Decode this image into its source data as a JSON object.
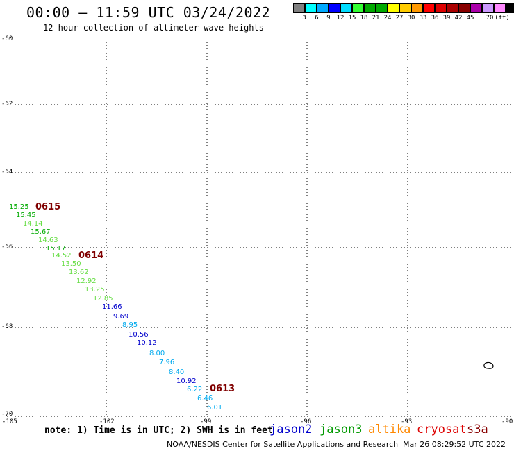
{
  "title": "00:00 – 11:59 UTC 03/24/2022",
  "subtitle": "12 hour collection of altimeter wave heights",
  "colorbar": {
    "colors": [
      "#808080",
      "#00ffff",
      "#00aaff",
      "#0000ff",
      "#00ddff",
      "#33ff33",
      "#00aa00",
      "#00aa00",
      "#ffff00",
      "#ffcc00",
      "#ff9900",
      "#ff0000",
      "#dd0000",
      "#aa0000",
      "#880000",
      "#aa00aa",
      "#cc99ff",
      "#ff88ff",
      "#000000"
    ],
    "labels": [
      "3",
      "6",
      "9",
      "12",
      "15",
      "18",
      "21",
      "24",
      "27",
      "30",
      "33",
      "36",
      "39",
      "42",
      "45",
      "70"
    ],
    "unit": "(ft)"
  },
  "axes": {
    "x_ticks": [
      "-105",
      "-102",
      "-99",
      "-96",
      "-93",
      "-90"
    ],
    "y_ticks": [
      "-60",
      "-62",
      "-64",
      "-66",
      "-68",
      "-70"
    ]
  },
  "observations": [
    {
      "v": "15.25",
      "c": "#00aa00"
    },
    {
      "v": "15.45",
      "c": "#00aa00"
    },
    {
      "v": "14.14",
      "c": "#66dd44"
    },
    {
      "v": "15.67",
      "c": "#00aa00"
    },
    {
      "v": "14.63",
      "c": "#66dd44"
    },
    {
      "v": "15.17",
      "c": "#00aa00"
    },
    {
      "v": "14.52",
      "c": "#66dd44"
    },
    {
      "v": "13.50",
      "c": "#66dd44"
    },
    {
      "v": "13.62",
      "c": "#66dd44"
    },
    {
      "v": "12.92",
      "c": "#66dd44"
    },
    {
      "v": "13.25",
      "c": "#66dd44"
    },
    {
      "v": "12.85",
      "c": "#66dd44"
    },
    {
      "v": "11.66",
      "c": "#0000cc"
    },
    {
      "v": "9.69",
      "c": "#0000cc"
    },
    {
      "v": "8.95",
      "c": "#00aaee"
    },
    {
      "v": "10.56",
      "c": "#0000cc"
    },
    {
      "v": "10.12",
      "c": "#0000cc"
    },
    {
      "v": "8.00",
      "c": "#00aaee"
    },
    {
      "v": "7.96",
      "c": "#00aaee"
    },
    {
      "v": "8.40",
      "c": "#00aaee"
    },
    {
      "v": "10.92",
      "c": "#0000cc"
    },
    {
      "v": "6.22",
      "c": "#00aaee"
    },
    {
      "v": "6.46",
      "c": "#00aaee"
    },
    {
      "v": "6.01",
      "c": "#00aaee"
    }
  ],
  "time_labels": [
    "0615",
    "0614",
    "0613"
  ],
  "note": "note:  1) Time is in UTC;  2) SWH is in feet",
  "satellites": [
    {
      "name": "jason2",
      "color": "#0000cc"
    },
    {
      "name": "jason3",
      "color": "#009900"
    },
    {
      "name": "altika",
      "color": "#ff8800"
    },
    {
      "name": "cryosat",
      "color": "#dd0000"
    },
    {
      "name": "s3a",
      "color": "#880000"
    }
  ],
  "credit": "NOAA/NESDIS Center for Satellite Applications and Research",
  "timestamp": "Mar 26 08:29:52 UTC 2022"
}
